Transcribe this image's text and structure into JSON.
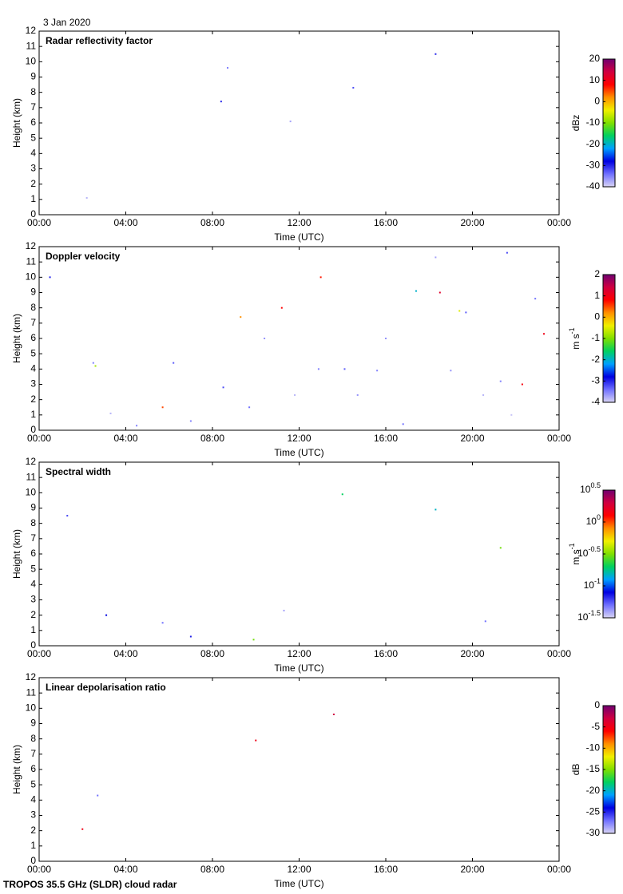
{
  "date": "3 Jan 2020",
  "footer": "TROPOS 35.5 GHz (SLDR) cloud radar",
  "colormap": [
    "#d8d4f4",
    "#7070ff",
    "#0000e0",
    "#00a0ff",
    "#00d060",
    "#80e000",
    "#f0f000",
    "#ff9000",
    "#ff0000",
    "#d00040",
    "#700070"
  ],
  "chart_data": [
    {
      "type": "heatmap",
      "title": "Radar reflectivity factor",
      "xlabel": "Time (UTC)",
      "ylabel": "Height (km)",
      "xlim": [
        0,
        24
      ],
      "xticks": [
        {
          "value": 0,
          "label": "00:00"
        },
        {
          "value": 4,
          "label": "04:00"
        },
        {
          "value": 8,
          "label": "08:00"
        },
        {
          "value": 12,
          "label": "12:00"
        },
        {
          "value": 16,
          "label": "16:00"
        },
        {
          "value": 20,
          "label": "20:00"
        },
        {
          "value": 24,
          "label": "00:00"
        }
      ],
      "ylim": [
        0,
        12
      ],
      "yticks": [
        0,
        1,
        2,
        3,
        4,
        5,
        6,
        7,
        8,
        9,
        10,
        11,
        12
      ],
      "colorbar": {
        "label": "dBz",
        "lim": [
          -40,
          20
        ],
        "ticks": [
          20,
          10,
          0,
          -10,
          -20,
          -30,
          -40
        ]
      },
      "x": [
        8.4,
        8.7,
        18.3,
        14.5,
        2.2,
        11.6
      ],
      "y": [
        7.4,
        9.6,
        10.5,
        8.3,
        1.1,
        6.1
      ],
      "values": [
        -30,
        -35,
        -30,
        -32,
        -38,
        -37
      ]
    },
    {
      "type": "heatmap",
      "title": "Doppler velocity",
      "xlabel": "Time (UTC)",
      "ylabel": "Height (km)",
      "xlim": [
        0,
        24
      ],
      "xticks": [
        {
          "value": 0,
          "label": "00:00"
        },
        {
          "value": 4,
          "label": "04:00"
        },
        {
          "value": 8,
          "label": "08:00"
        },
        {
          "value": 12,
          "label": "12:00"
        },
        {
          "value": 16,
          "label": "16:00"
        },
        {
          "value": 20,
          "label": "20:00"
        },
        {
          "value": 24,
          "label": "00:00"
        }
      ],
      "ylim": [
        0,
        12
      ],
      "yticks": [
        0,
        1,
        2,
        3,
        4,
        5,
        6,
        7,
        8,
        9,
        10,
        11,
        12
      ],
      "colorbar": {
        "label": "m s",
        "label_sup": "-1",
        "lim": [
          -4,
          2
        ],
        "ticks": [
          2,
          1,
          0,
          -1,
          -2,
          -3,
          -4
        ]
      },
      "x": [
        0.5,
        2.5,
        3.3,
        5.7,
        7.0,
        8.5,
        9.7,
        10.4,
        11.2,
        11.8,
        12.9,
        14.1,
        14.7,
        15.6,
        16.8,
        18.3,
        18.5,
        19.0,
        19.7,
        20.5,
        21.3,
        21.6,
        22.3,
        22.9,
        23.3,
        2.6,
        4.5,
        9.3,
        13.0,
        17.4,
        6.2,
        19.4,
        16.0,
        21.8
      ],
      "y": [
        10.0,
        4.4,
        1.1,
        1.5,
        0.6,
        2.8,
        1.5,
        6.0,
        8.0,
        2.3,
        4.0,
        4.0,
        2.3,
        3.9,
        0.4,
        11.3,
        9.0,
        3.9,
        7.7,
        2.3,
        3.2,
        11.6,
        3.0,
        8.6,
        6.3,
        4.2,
        0.3,
        7.4,
        10.0,
        9.1,
        4.4,
        7.8,
        6.0,
        1.0
      ],
      "values": [
        -3,
        -3.5,
        -3.8,
        0.5,
        -3.5,
        -3.2,
        -3.4,
        -3.6,
        0.8,
        -3.8,
        -3.5,
        -3.3,
        -3.6,
        -3.5,
        -3.4,
        -3.7,
        1.2,
        -3.6,
        -3.3,
        -3.8,
        -3.5,
        -3.2,
        0.9,
        -3.4,
        1.0,
        -0.8,
        -3.5,
        0.2,
        0.7,
        -2.0,
        -3.3,
        -0.5,
        -3.6,
        -3.9
      ]
    },
    {
      "type": "heatmap",
      "title": "Spectral width",
      "xlabel": "Time (UTC)",
      "ylabel": "Height (km)",
      "xlim": [
        0,
        24
      ],
      "xticks": [
        {
          "value": 0,
          "label": "00:00"
        },
        {
          "value": 4,
          "label": "04:00"
        },
        {
          "value": 8,
          "label": "08:00"
        },
        {
          "value": 12,
          "label": "12:00"
        },
        {
          "value": 16,
          "label": "16:00"
        },
        {
          "value": 20,
          "label": "20:00"
        },
        {
          "value": 24,
          "label": "00:00"
        }
      ],
      "ylim": [
        0,
        12
      ],
      "yticks": [
        0,
        1,
        2,
        3,
        4,
        5,
        6,
        7,
        8,
        9,
        10,
        11,
        12
      ],
      "colorbar": {
        "label": "m s",
        "label_sup": "-1",
        "log": true,
        "lim": [
          0.0316,
          3.16
        ],
        "ticks": [
          {
            "value": 3.16,
            "label": "10",
            "sup": "0.5"
          },
          {
            "value": 1,
            "label": "10",
            "sup": "0"
          },
          {
            "value": 0.316,
            "label": "10",
            "sup": "-0.5"
          },
          {
            "value": 0.1,
            "label": "10",
            "sup": "-1"
          },
          {
            "value": 0.0316,
            "label": "10",
            "sup": "-1.5"
          }
        ]
      },
      "x": [
        1.3,
        5.7,
        7.0,
        11.3,
        14.0,
        18.3,
        20.6,
        3.1,
        21.3,
        9.9
      ],
      "y": [
        8.5,
        1.5,
        0.6,
        2.3,
        9.9,
        8.9,
        1.6,
        2.0,
        6.4,
        0.4
      ],
      "values": [
        0.06,
        0.05,
        0.07,
        0.04,
        0.2,
        0.15,
        0.05,
        0.08,
        0.3,
        0.3
      ]
    },
    {
      "type": "heatmap",
      "title": "Linear depolarisation ratio",
      "xlabel": "Time (UTC)",
      "ylabel": "Height (km)",
      "xlim": [
        0,
        24
      ],
      "xticks": [
        {
          "value": 0,
          "label": "00:00"
        },
        {
          "value": 4,
          "label": "04:00"
        },
        {
          "value": 8,
          "label": "08:00"
        },
        {
          "value": 12,
          "label": "12:00"
        },
        {
          "value": 16,
          "label": "16:00"
        },
        {
          "value": 20,
          "label": "20:00"
        },
        {
          "value": 24,
          "label": "00:00"
        }
      ],
      "ylim": [
        0,
        12
      ],
      "yticks": [
        0,
        1,
        2,
        3,
        4,
        5,
        6,
        7,
        8,
        9,
        10,
        11,
        12
      ],
      "colorbar": {
        "label": "dB",
        "lim": [
          -30,
          0
        ],
        "ticks": [
          0,
          -5,
          -10,
          -15,
          -20,
          -25,
          -30
        ]
      },
      "x": [
        2.0,
        2.7,
        10.0,
        13.6
      ],
      "y": [
        2.1,
        4.3,
        7.9,
        9.6
      ],
      "values": [
        -5,
        -27,
        -5,
        -3
      ]
    }
  ]
}
